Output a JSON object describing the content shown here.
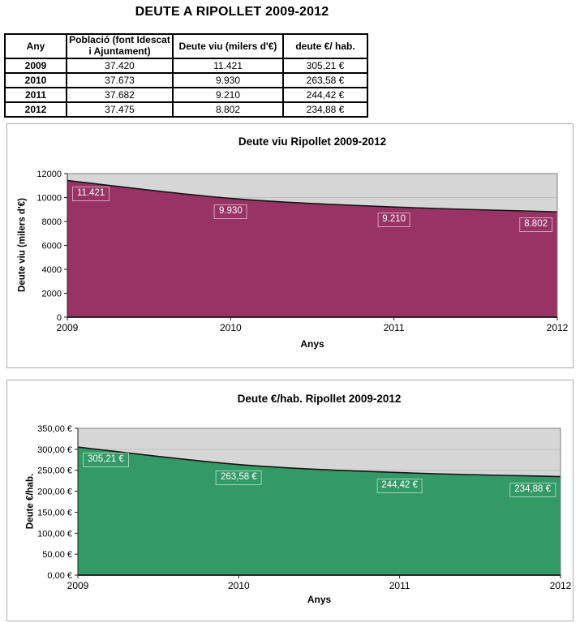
{
  "page_title": "DEUTE A RIPOLLET 2009-2012",
  "table": {
    "headers": [
      "Any",
      "Població (font Idescat i Ajuntament)",
      "Deute viu (milers d'€)",
      "deute €/ hab."
    ],
    "rows": [
      [
        "2009",
        "37.420",
        "11.421",
        "305,21 €"
      ],
      [
        "2010",
        "37.673",
        "9.930",
        "263,58 €"
      ],
      [
        "2011",
        "37.682",
        "9.210",
        "244,42 €"
      ],
      [
        "2012",
        "37.475",
        "8.802",
        "234,88 €"
      ]
    ]
  },
  "chart_data": [
    {
      "type": "area",
      "title": "Deute viu Ripollet 2009-2012",
      "xlabel": "Anys",
      "ylabel": "Deute viu (milers d'€)",
      "categories": [
        "2009",
        "2010",
        "2011",
        "2012"
      ],
      "values": [
        11421,
        9930,
        9210,
        8802
      ],
      "data_labels": [
        "11.421",
        "9.930",
        "9.210",
        "8.802"
      ],
      "ylim": [
        0,
        12000
      ],
      "ytick_step": 2000,
      "ytick_labels": [
        "0",
        "2000",
        "4000",
        "6000",
        "8000",
        "10000",
        "12000"
      ],
      "area_color": "#993366",
      "line_color": "#141414",
      "plot_bg": "#d6d6d6",
      "grid_color": "#bfbfbf",
      "grid": true,
      "legend": "none",
      "label_text_color": "#ffffff"
    },
    {
      "type": "area",
      "title": "Deute €/hab. Ripollet 2009-2012",
      "xlabel": "Anys",
      "ylabel": "Deute €/hab.",
      "categories": [
        "2009",
        "2010",
        "2011",
        "2012"
      ],
      "values": [
        305.21,
        263.58,
        244.42,
        234.88
      ],
      "data_labels": [
        "305,21 €",
        "263,58 €",
        "244,42 €",
        "234,88 €"
      ],
      "ylim": [
        0,
        350
      ],
      "ytick_step": 50,
      "ytick_labels": [
        "0,00 €",
        "50,00 €",
        "100,00 €",
        "150,00 €",
        "200,00 €",
        "250,00 €",
        "300,00 €",
        "350,00 €"
      ],
      "area_color": "#339966",
      "line_color": "#141414",
      "plot_bg": "#d6d6d6",
      "grid_color": "#bfbfbf",
      "grid": true,
      "legend": "none",
      "label_text_color": "#ffffff"
    }
  ]
}
